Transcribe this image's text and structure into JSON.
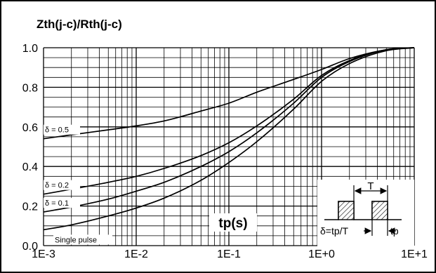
{
  "chart_data": {
    "type": "line",
    "title": "Zth(j-c)/Rth(j-c)",
    "xlabel": "tp(s)",
    "ylabel": "",
    "xscale": "log",
    "xlim": [
      0.001,
      10
    ],
    "ylim": [
      0,
      1.0
    ],
    "grid": true,
    "x_tick_labels": [
      "1E-3",
      "1E-2",
      "1E-1",
      "1E+0",
      "1E+1"
    ],
    "y_tick_labels": [
      "0.0",
      "0.2",
      "0.4",
      "0.6",
      "0.8",
      "1.0"
    ],
    "series": [
      {
        "name": "δ = 0.5",
        "points": [
          [
            0.001,
            0.54
          ],
          [
            0.002,
            0.56
          ],
          [
            0.005,
            0.585
          ],
          [
            0.01,
            0.605
          ],
          [
            0.02,
            0.63
          ],
          [
            0.05,
            0.68
          ],
          [
            0.1,
            0.72
          ],
          [
            0.2,
            0.775
          ],
          [
            0.5,
            0.84
          ],
          [
            1,
            0.89
          ],
          [
            2,
            0.945
          ],
          [
            5,
            0.99
          ],
          [
            10,
            1.0
          ]
        ]
      },
      {
        "name": "δ = 0.2",
        "points": [
          [
            0.001,
            0.26
          ],
          [
            0.002,
            0.285
          ],
          [
            0.005,
            0.32
          ],
          [
            0.01,
            0.35
          ],
          [
            0.02,
            0.39
          ],
          [
            0.05,
            0.455
          ],
          [
            0.1,
            0.52
          ],
          [
            0.2,
            0.605
          ],
          [
            0.5,
            0.74
          ],
          [
            1,
            0.86
          ],
          [
            2,
            0.935
          ],
          [
            5,
            0.99
          ],
          [
            10,
            1.0
          ]
        ]
      },
      {
        "name": "δ = 0.1",
        "points": [
          [
            0.001,
            0.17
          ],
          [
            0.002,
            0.195
          ],
          [
            0.005,
            0.235
          ],
          [
            0.01,
            0.275
          ],
          [
            0.02,
            0.32
          ],
          [
            0.05,
            0.4
          ],
          [
            0.1,
            0.475
          ],
          [
            0.2,
            0.57
          ],
          [
            0.5,
            0.72
          ],
          [
            1,
            0.85
          ],
          [
            2,
            0.93
          ],
          [
            5,
            0.99
          ],
          [
            10,
            1.0
          ]
        ]
      },
      {
        "name": "Single pulse",
        "points": [
          [
            0.001,
            0.08
          ],
          [
            0.002,
            0.105
          ],
          [
            0.005,
            0.15
          ],
          [
            0.01,
            0.19
          ],
          [
            0.02,
            0.24
          ],
          [
            0.05,
            0.33
          ],
          [
            0.1,
            0.42
          ],
          [
            0.2,
            0.525
          ],
          [
            0.5,
            0.69
          ],
          [
            1,
            0.83
          ],
          [
            2,
            0.92
          ],
          [
            5,
            0.985
          ],
          [
            10,
            1.0
          ]
        ]
      }
    ],
    "inset": {
      "period_label": "T",
      "duty_label": "δ=tp/T",
      "pulse_label": "tp"
    }
  }
}
